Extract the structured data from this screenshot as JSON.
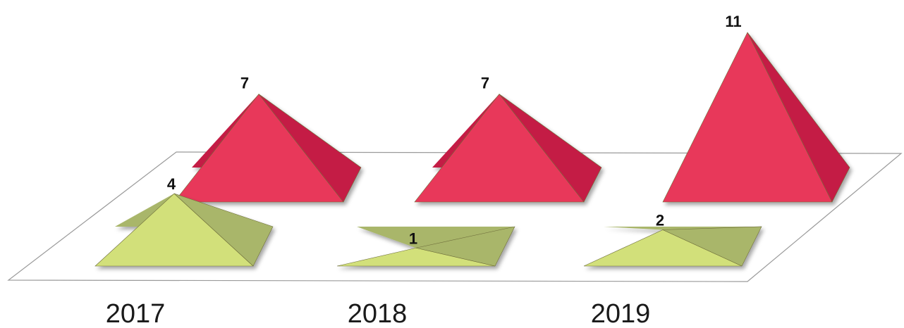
{
  "chart_data": {
    "type": "bar",
    "shape": "3d-pyramid",
    "categories": [
      "2017",
      "2018",
      "2019"
    ],
    "series": [
      {
        "values": [
          4,
          1,
          2
        ],
        "color": "#d2e07a",
        "side_color": "#a9b66a"
      },
      {
        "values": [
          7,
          7,
          11
        ],
        "color": "#e8375a",
        "side_color": "#c41f44"
      }
    ],
    "data_labels": true,
    "grid": false,
    "legend": "none"
  }
}
